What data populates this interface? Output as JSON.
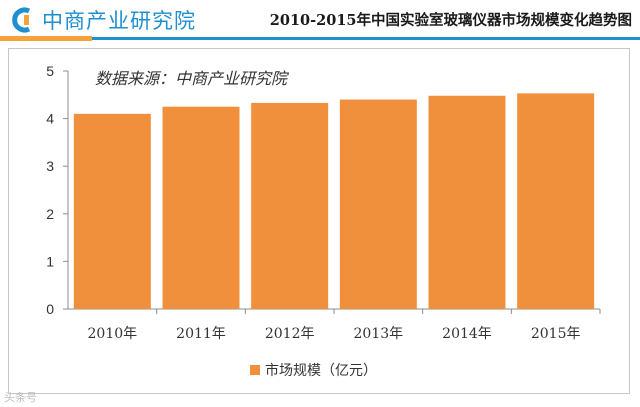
{
  "header": {
    "logo_text": "中商产业研究院",
    "title": "2010-2015年中国实验室玻璃仪器市场规模变化趋势图"
  },
  "watermark": "头条号",
  "colors": {
    "bar": "#F0903C",
    "brand": "#1F8FD0",
    "accent": "#F5A23A"
  },
  "chart_data": {
    "type": "bar",
    "title": "2010-2015年中国实验室玻璃仪器市场规模变化趋势图",
    "annotation": "数据来源：中商产业研究院",
    "categories": [
      "2010年",
      "2011年",
      "2012年",
      "2013年",
      "2014年",
      "2015年"
    ],
    "series": [
      {
        "name": "市场规模（亿元）",
        "values": [
          4.1,
          4.25,
          4.33,
          4.4,
          4.48,
          4.53
        ]
      }
    ],
    "xlabel": "",
    "ylabel": "",
    "ylim": [
      0,
      5
    ],
    "yticks": [
      "0",
      "1",
      "2",
      "3",
      "4",
      "5"
    ],
    "grid": false,
    "legend": "bottom-center"
  }
}
